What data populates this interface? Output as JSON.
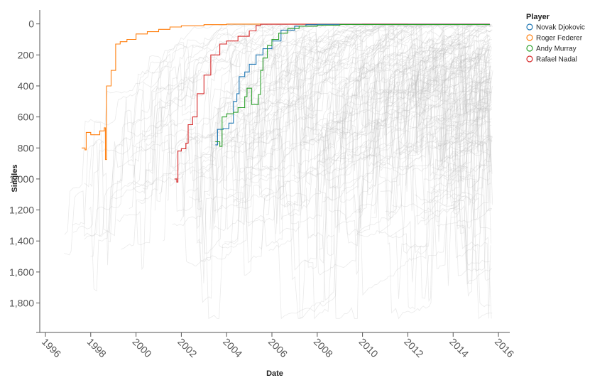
{
  "chart_data": {
    "type": "line",
    "title": "",
    "xlabel": "Date",
    "ylabel": "Singles",
    "x_ticks": [
      "1996",
      "1998",
      "2000",
      "2002",
      "2004",
      "2006",
      "2008",
      "2010",
      "2012",
      "2014",
      "2016"
    ],
    "y_ticks": [
      "0",
      "200",
      "400",
      "600",
      "800",
      "1,000",
      "1,200",
      "1,400",
      "1,600",
      "1,800"
    ],
    "xlim": [
      1995.75,
      2016.5
    ],
    "ylim": [
      1990,
      -90
    ],
    "y_reversed": true,
    "grid": false,
    "legend": {
      "title": "Player",
      "position": "top-right",
      "items": [
        "Novak Djokovic",
        "Roger Federer",
        "Andy Murray",
        "Rafael Nadal"
      ]
    },
    "series": [
      {
        "name": "Roger Federer",
        "color": "#ff7f0e",
        "points": [
          [
            1997.6,
            800
          ],
          [
            1997.75,
            812
          ],
          [
            1997.8,
            700
          ],
          [
            1998.0,
            715
          ],
          [
            1998.4,
            690
          ],
          [
            1998.6,
            670
          ],
          [
            1998.65,
            875
          ],
          [
            1998.7,
            400
          ],
          [
            1998.85,
            400
          ],
          [
            1998.9,
            300
          ],
          [
            1999.1,
            130
          ],
          [
            1999.3,
            115
          ],
          [
            1999.6,
            100
          ],
          [
            2000.0,
            65
          ],
          [
            2000.5,
            50
          ],
          [
            2001.0,
            35
          ],
          [
            2001.5,
            20
          ],
          [
            2002.0,
            12
          ],
          [
            2003.0,
            5
          ],
          [
            2004.0,
            1
          ],
          [
            2008.0,
            1
          ],
          [
            2012.0,
            2
          ],
          [
            2015.6,
            2
          ]
        ]
      },
      {
        "name": "Rafael Nadal",
        "color": "#d62728",
        "points": [
          [
            2001.7,
            1000
          ],
          [
            2001.8,
            1020
          ],
          [
            2001.85,
            820
          ],
          [
            2002.0,
            805
          ],
          [
            2002.2,
            770
          ],
          [
            2002.3,
            650
          ],
          [
            2002.5,
            600
          ],
          [
            2002.7,
            450
          ],
          [
            2003.0,
            330
          ],
          [
            2003.3,
            200
          ],
          [
            2003.7,
            130
          ],
          [
            2004.0,
            110
          ],
          [
            2004.5,
            80
          ],
          [
            2005.0,
            45
          ],
          [
            2005.3,
            10
          ],
          [
            2005.5,
            2
          ],
          [
            2010.0,
            1
          ],
          [
            2015.6,
            6
          ]
        ]
      },
      {
        "name": "Novak Djokovic",
        "color": "#1f77b4",
        "points": [
          [
            2003.5,
            780
          ],
          [
            2003.6,
            680
          ],
          [
            2003.85,
            675
          ],
          [
            2004.1,
            640
          ],
          [
            2004.3,
            500
          ],
          [
            2004.45,
            450
          ],
          [
            2004.55,
            340
          ],
          [
            2004.8,
            310
          ],
          [
            2005.0,
            260
          ],
          [
            2005.3,
            200
          ],
          [
            2005.6,
            160
          ],
          [
            2006.0,
            110
          ],
          [
            2006.4,
            40
          ],
          [
            2007.0,
            15
          ],
          [
            2007.5,
            5
          ],
          [
            2008.0,
            3
          ],
          [
            2015.6,
            1
          ]
        ]
      },
      {
        "name": "Andy Murray",
        "color": "#2ca02c",
        "points": [
          [
            2003.5,
            760
          ],
          [
            2003.7,
            790
          ],
          [
            2003.8,
            600
          ],
          [
            2004.0,
            580
          ],
          [
            2004.3,
            570
          ],
          [
            2004.5,
            540
          ],
          [
            2004.8,
            470
          ],
          [
            2004.9,
            415
          ],
          [
            2005.1,
            520
          ],
          [
            2005.4,
            455
          ],
          [
            2005.5,
            300
          ],
          [
            2005.6,
            220
          ],
          [
            2005.8,
            140
          ],
          [
            2006.0,
            100
          ],
          [
            2006.3,
            60
          ],
          [
            2006.7,
            30
          ],
          [
            2007.2,
            15
          ],
          [
            2008.0,
            8
          ],
          [
            2009.0,
            4
          ],
          [
            2015.6,
            3
          ]
        ]
      }
    ],
    "background_series": {
      "name": "",
      "color": "#bdbdbd",
      "count": 120
    }
  }
}
